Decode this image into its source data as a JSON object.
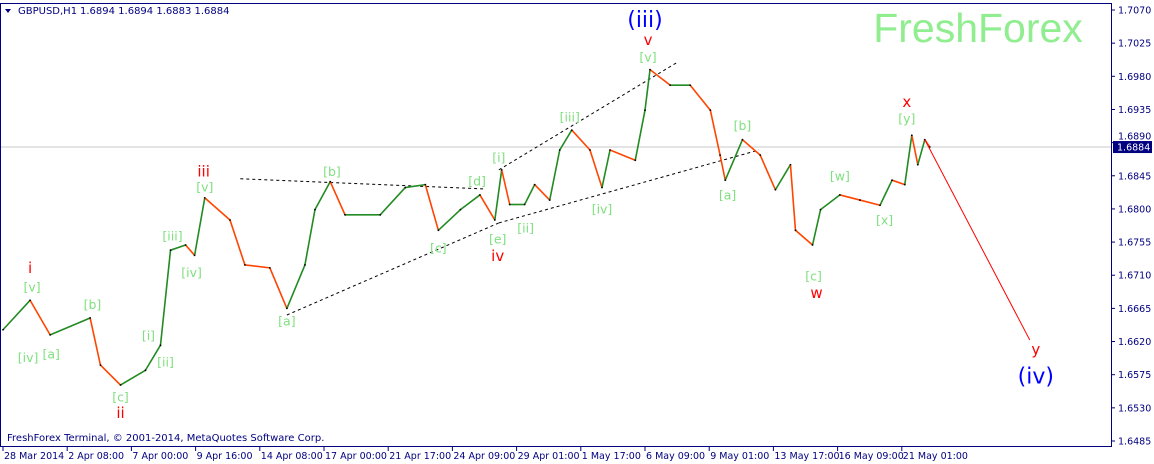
{
  "header": {
    "symbol": "GBPUSD,H1",
    "ohlc": "1.6894 1.6894 1.6883 1.6884",
    "dropdown_icon": "triangle-down-icon"
  },
  "watermark": "FreshForex",
  "footer": "FreshForex Terminal, © 2001-2014, MetaQuotes Software Corp.",
  "colors": {
    "frame": "#000080",
    "bull": "#228B22",
    "bear": "#FF4500",
    "minor_label": "#7FE07F",
    "intermediate_label": "#FF0000",
    "major_label": "#0000FF",
    "watermark": "#90EE90",
    "projection": "#FF0000",
    "trendline": "#000000",
    "price_line": "#C8C8C8"
  },
  "chart_data": {
    "type": "line",
    "title": "GBPUSD,H1",
    "current_price": "1.6884",
    "ylim": [
      1.6485,
      1.707
    ],
    "y_ticks": [
      "1.7070",
      "1.7025",
      "1.6980",
      "1.6935",
      "1.6890",
      "1.6845",
      "1.6800",
      "1.6755",
      "1.6710",
      "1.6665",
      "1.6620",
      "1.6575",
      "1.6530",
      "1.6485"
    ],
    "x_ticks": [
      {
        "label": "28 Mar 2014",
        "t": "2014-03-28 00"
      },
      {
        "label": "2 Apr 08:00",
        "t": "2014-04-02 08"
      },
      {
        "label": "7 Apr 00:00",
        "t": "2014-04-07 00"
      },
      {
        "label": "9 Apr 16:00",
        "t": "2014-04-09 16"
      },
      {
        "label": "14 Apr 08:00",
        "t": "2014-04-14 08"
      },
      {
        "label": "17 Apr 00:00",
        "t": "2014-04-17 00"
      },
      {
        "label": "21 Apr 17:00",
        "t": "2014-04-21 17"
      },
      {
        "label": "24 Apr 09:00",
        "t": "2014-04-24 09"
      },
      {
        "label": "29 Apr 01:00",
        "t": "2014-04-29 01"
      },
      {
        "label": "1 May 17:00",
        "t": "2014-05-01 17"
      },
      {
        "label": "6 May 09:00",
        "t": "2014-05-06 09"
      },
      {
        "label": "9 May 01:00",
        "t": "2014-05-09 01"
      },
      {
        "label": "13 May 17:00",
        "t": "2014-05-13 17"
      },
      {
        "label": "16 May 09:00",
        "t": "2014-05-16 09"
      },
      {
        "label": "21 May 01:00",
        "t": "2014-05-21 01"
      }
    ],
    "series": [
      [
        "2014-03-28 00",
        1.6636
      ],
      [
        "2014-03-30 06",
        1.6676
      ],
      [
        "2014-03-31 22",
        1.6629
      ],
      [
        "2014-04-04 00",
        1.6652
      ],
      [
        "2014-04-04 18",
        1.6588
      ],
      [
        "2014-04-06 05",
        1.6561
      ],
      [
        "2014-04-07 14",
        1.6581
      ],
      [
        "2014-04-08 05",
        1.6615
      ],
      [
        "2014-04-08 15",
        1.6744
      ],
      [
        "2014-04-09 06",
        1.6751
      ],
      [
        "2014-04-09 15",
        1.6737
      ],
      [
        "2014-04-10 08",
        1.6815
      ],
      [
        "2014-04-12 04",
        1.6785
      ],
      [
        "2014-04-13 06",
        1.6724
      ],
      [
        "2014-04-14 18",
        1.672
      ],
      [
        "2014-04-15 11",
        1.6665
      ],
      [
        "2014-04-16 05",
        1.6724
      ],
      [
        "2014-04-16 15",
        1.6799
      ],
      [
        "2014-04-17 11",
        1.6837
      ],
      [
        "2014-04-18 13",
        1.6792
      ],
      [
        "2014-04-21 03",
        1.6792
      ],
      [
        "2014-04-22 10",
        1.6829
      ],
      [
        "2014-04-23 06",
        1.6833
      ],
      [
        "2014-04-23 19",
        1.6771
      ],
      [
        "2014-04-24 23",
        1.6799
      ],
      [
        "2014-04-26 09",
        1.6819
      ],
      [
        "2014-04-27 11",
        1.6785
      ],
      [
        "2014-04-27 23",
        1.6853
      ],
      [
        "2014-04-28 13",
        1.6806
      ],
      [
        "2014-04-29 09",
        1.6806
      ],
      [
        "2014-04-29 19",
        1.6833
      ],
      [
        "2014-04-30 10",
        1.6812
      ],
      [
        "2014-04-30 20",
        1.688
      ],
      [
        "2014-05-01 08",
        1.6907
      ],
      [
        "2014-05-02 09",
        1.688
      ],
      [
        "2014-05-03 06",
        1.6829
      ],
      [
        "2014-05-03 20",
        1.688
      ],
      [
        "2014-05-05 16",
        1.6866
      ],
      [
        "2014-05-06 09",
        1.6934
      ],
      [
        "2014-05-06 14",
        1.6989
      ],
      [
        "2014-05-07 10",
        1.6968
      ],
      [
        "2014-05-08 06",
        1.6968
      ],
      [
        "2014-05-09 03",
        1.6934
      ],
      [
        "2014-05-09 20",
        1.6873
      ],
      [
        "2014-05-10 05",
        1.6839
      ],
      [
        "2014-05-11 11",
        1.6894
      ],
      [
        "2014-05-12 18",
        1.6873
      ],
      [
        "2014-05-13 19",
        1.6826
      ],
      [
        "2014-05-14 10",
        1.686
      ],
      [
        "2014-05-14 15",
        1.6771
      ],
      [
        "2014-05-15 08",
        1.6751
      ],
      [
        "2014-05-15 16",
        1.6799
      ],
      [
        "2014-05-16 13",
        1.6819
      ],
      [
        "2014-05-18 00",
        1.6812
      ],
      [
        "2014-05-19 11",
        1.6805
      ],
      [
        "2014-05-20 08",
        1.6839
      ],
      [
        "2014-05-21 04",
        1.6833
      ],
      [
        "2014-05-21 11",
        1.69
      ],
      [
        "2014-05-21 17",
        1.686
      ],
      [
        "2014-05-22 00",
        1.6894
      ],
      [
        "2014-05-22 05",
        1.6884
      ]
    ],
    "projection": [
      [
        "2014-05-22 00",
        1.6894
      ],
      [
        "2014-05-26 09",
        1.6622
      ]
    ],
    "trendlines": [
      [
        [
          "2014-04-12 22",
          1.6841
        ],
        [
          "2014-04-26 19",
          1.6827
        ]
      ],
      [
        [
          "2014-04-15 11",
          1.6656
        ],
        [
          "2014-04-27 18",
          1.6781
        ]
      ],
      [
        [
          "2014-04-27 18",
          1.6853
        ],
        [
          "2014-05-07 16",
          1.6998
        ]
      ],
      [
        [
          "2014-04-27 18",
          1.6781
        ],
        [
          "2014-05-12 16",
          1.688
        ]
      ]
    ],
    "wave_labels": [
      {
        "text": "[v]",
        "level": "minor",
        "t": "2014-03-30 10",
        "p": 1.6694
      },
      {
        "text": "[iv]",
        "level": "minor",
        "t": "2014-03-30 02",
        "p": 1.6598
      },
      {
        "text": "[a]",
        "level": "minor",
        "t": "2014-04-01 00",
        "p": 1.6603
      },
      {
        "text": "[b]",
        "level": "minor",
        "t": "2014-04-04 04",
        "p": 1.667
      },
      {
        "text": "[c]",
        "level": "minor",
        "t": "2014-04-06 05",
        "p": 1.6545
      },
      {
        "text": "[i]",
        "level": "minor",
        "t": "2014-04-07 17",
        "p": 1.6628
      },
      {
        "text": "[ii]",
        "level": "minor",
        "t": "2014-04-08 10",
        "p": 1.6592
      },
      {
        "text": "[iii]",
        "level": "minor",
        "t": "2014-04-08 17",
        "p": 1.6763
      },
      {
        "text": "[iv]",
        "level": "minor",
        "t": "2014-04-09 12",
        "p": 1.6714
      },
      {
        "text": "[v]",
        "level": "minor",
        "t": "2014-04-10 08",
        "p": 1.683
      },
      {
        "text": "[a]",
        "level": "minor",
        "t": "2014-04-15 11",
        "p": 1.6648
      },
      {
        "text": "[b]",
        "level": "minor",
        "t": "2014-04-17 14",
        "p": 1.6851
      },
      {
        "text": "[c]",
        "level": "minor",
        "t": "2014-04-23 19",
        "p": 1.6747
      },
      {
        "text": "[d]",
        "level": "minor",
        "t": "2014-04-26 04",
        "p": 1.6838
      },
      {
        "text": "[e]",
        "level": "minor",
        "t": "2014-04-27 16",
        "p": 1.6759
      },
      {
        "text": "[i]",
        "level": "minor",
        "t": "2014-04-27 18",
        "p": 1.687
      },
      {
        "text": "[ii]",
        "level": "minor",
        "t": "2014-04-29 10",
        "p": 1.6774
      },
      {
        "text": "[iii]",
        "level": "minor",
        "t": "2014-05-01 06",
        "p": 1.6925
      },
      {
        "text": "[iv]",
        "level": "minor",
        "t": "2014-05-03 06",
        "p": 1.68
      },
      {
        "text": "[v]",
        "level": "minor",
        "t": "2014-05-06 12",
        "p": 1.7006
      },
      {
        "text": "[a]",
        "level": "minor",
        "t": "2014-05-10 09",
        "p": 1.6819
      },
      {
        "text": "[b]",
        "level": "minor",
        "t": "2014-05-11 11",
        "p": 1.6913
      },
      {
        "text": "[c]",
        "level": "minor",
        "t": "2014-05-15 09",
        "p": 1.6709
      },
      {
        "text": "[w]",
        "level": "minor",
        "t": "2014-05-16 13",
        "p": 1.6845
      },
      {
        "text": "[x]",
        "level": "minor",
        "t": "2014-05-19 19",
        "p": 1.6785
      },
      {
        "text": "[y]",
        "level": "minor",
        "t": "2014-05-21 06",
        "p": 1.6923
      },
      {
        "text": "i",
        "level": "intermediate",
        "t": "2014-03-30 06",
        "p": 1.672
      },
      {
        "text": "ii",
        "level": "intermediate",
        "t": "2014-04-06 05",
        "p": 1.6523
      },
      {
        "text": "iii",
        "level": "intermediate",
        "t": "2014-04-10 06",
        "p": 1.6851
      },
      {
        "text": "iv",
        "level": "intermediate",
        "t": "2014-04-27 16",
        "p": 1.6736
      },
      {
        "text": "v",
        "level": "intermediate",
        "t": "2014-05-06 12",
        "p": 1.7029
      },
      {
        "text": "w",
        "level": "intermediate",
        "t": "2014-05-15 12",
        "p": 1.6686
      },
      {
        "text": "x",
        "level": "intermediate",
        "t": "2014-05-21 06",
        "p": 1.6945
      },
      {
        "text": "y",
        "level": "intermediate",
        "t": "2014-05-26 15",
        "p": 1.6609
      },
      {
        "text": "(iii)",
        "level": "major",
        "t": "2014-05-06 09",
        "p": 1.7056
      },
      {
        "text": "(iv)",
        "level": "major",
        "t": "2014-05-26 15",
        "p": 1.6572
      }
    ]
  }
}
